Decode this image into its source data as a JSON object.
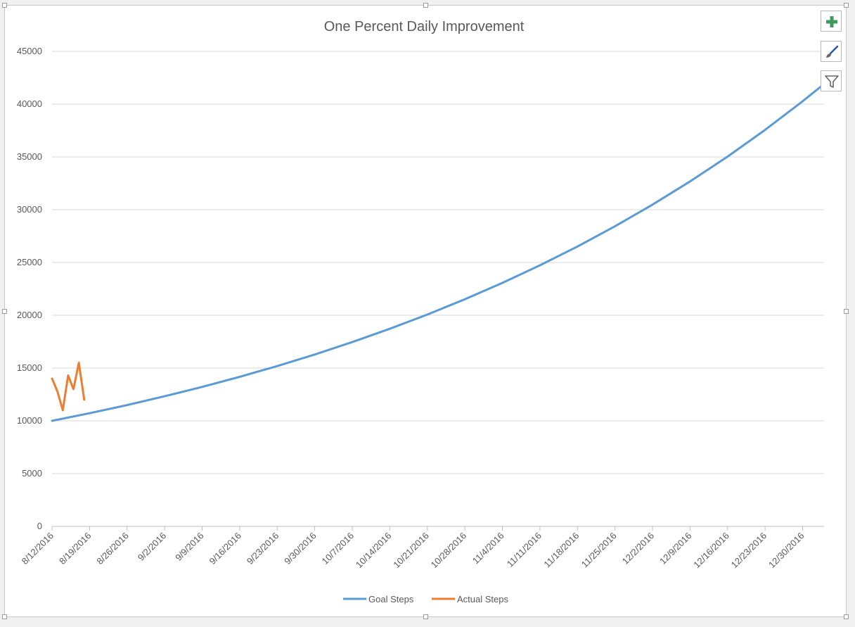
{
  "chart_data": {
    "type": "line",
    "title": "One Percent Daily Improvement",
    "xlabel": "",
    "ylabel": "",
    "x_start": "8/12/2016",
    "x_end": "1/3/2017",
    "x_ticks": [
      "8/12/2016",
      "8/19/2016",
      "8/26/2016",
      "9/2/2016",
      "9/9/2016",
      "9/16/2016",
      "9/23/2016",
      "9/30/2016",
      "10/7/2016",
      "10/14/2016",
      "10/21/2016",
      "10/28/2016",
      "11/4/2016",
      "11/11/2016",
      "11/18/2016",
      "11/25/2016",
      "12/2/2016",
      "12/9/2016",
      "12/16/2016",
      "12/23/2016",
      "12/30/2016"
    ],
    "ylim": [
      0,
      45000
    ],
    "y_ticks": [
      0,
      5000,
      10000,
      15000,
      20000,
      25000,
      30000,
      35000,
      40000,
      45000
    ],
    "grid": true,
    "legend_position": "bottom",
    "series": [
      {
        "name": "Goal Steps",
        "color": "#5b9bd5",
        "x": [
          "8/12/2016",
          "8/19/2016",
          "8/26/2016",
          "9/2/2016",
          "9/9/2016",
          "9/16/2016",
          "9/23/2016",
          "9/30/2016",
          "10/7/2016",
          "10/14/2016",
          "10/21/2016",
          "10/28/2016",
          "11/4/2016",
          "11/11/2016",
          "11/18/2016",
          "11/25/2016",
          "12/2/2016",
          "12/9/2016",
          "12/16/2016",
          "12/23/2016",
          "12/30/2016",
          "1/3/2017"
        ],
        "values": [
          10000,
          10721,
          11495,
          12324,
          13213,
          14166,
          15188,
          16283,
          17458,
          18717,
          20068,
          21515,
          23067,
          24731,
          26515,
          28428,
          30479,
          32677,
          35034,
          37562,
          40271,
          41906
        ]
      },
      {
        "name": "Actual Steps",
        "color": "#ed7d31",
        "x": [
          "8/12/2016",
          "8/13/2016",
          "8/14/2016",
          "8/15/2016",
          "8/16/2016",
          "8/17/2016",
          "8/18/2016"
        ],
        "values": [
          14000,
          12800,
          11000,
          14300,
          13000,
          15500,
          12000
        ]
      }
    ]
  },
  "toolbar": {
    "icons": [
      "plus-icon",
      "paintbrush-icon",
      "filter-icon"
    ],
    "icon_colors": {
      "plus": "#3c9a5f",
      "brush": "#2b579a",
      "filter": "#666666"
    }
  }
}
